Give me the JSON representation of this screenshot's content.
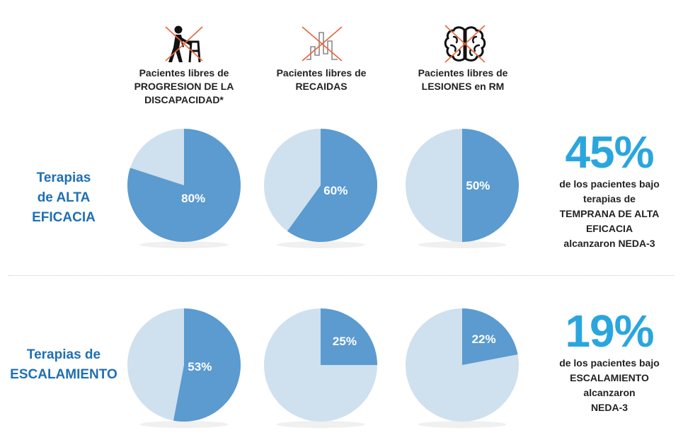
{
  "colors": {
    "filled": "#5b9bcf",
    "remainder": "#cfe0ee",
    "row_label": "#1f6fb2",
    "big_percent": "#2aa6de",
    "cross": "#e8643c"
  },
  "columns": [
    {
      "icon": "person-walker-icon",
      "header_lines": [
        "Pacientes libres de",
        "PROGRESION DE LA",
        "DISCAPACIDAD*"
      ]
    },
    {
      "icon": "relapse-bars-icon",
      "header_lines": [
        "Pacientes libres de",
        "RECAIDAS"
      ]
    },
    {
      "icon": "brain-icon",
      "header_lines": [
        "Pacientes libres de",
        "LESIONES en RM"
      ]
    }
  ],
  "rows": [
    {
      "label_lines": [
        "Terapias",
        "de ALTA",
        "EFICACIA"
      ],
      "summary_percent": "45%",
      "summary_lines": [
        "de los pacientes bajo",
        "terapias de",
        "TEMPRANA DE ALTA",
        "EFICACIA",
        "alcanzaron NEDA-3"
      ]
    },
    {
      "label_lines": [
        "Terapias de",
        "ESCALAMIENTO"
      ],
      "summary_percent": "19%",
      "summary_lines": [
        "de los pacientes bajo",
        "ESCALAMIENTO",
        "alcanzaron",
        "NEDA-3"
      ]
    }
  ],
  "chart_data": {
    "type": "pie",
    "title": "",
    "series_labels": [
      "Pacientes libres de PROGRESION DE LA DISCAPACIDAD*",
      "Pacientes libres de RECAIDAS",
      "Pacientes libres de LESIONES en RM"
    ],
    "row_labels": [
      "Terapias de ALTA EFICACIA",
      "Terapias de ESCALAMIENTO"
    ],
    "pies": [
      [
        {
          "value": 80,
          "label": "80%"
        },
        {
          "value": 60,
          "label": "60%"
        },
        {
          "value": 50,
          "label": "50%"
        }
      ],
      [
        {
          "value": 53,
          "label": "53%"
        },
        {
          "value": 25,
          "label": "25%"
        },
        {
          "value": 22,
          "label": "22%"
        }
      ]
    ]
  }
}
